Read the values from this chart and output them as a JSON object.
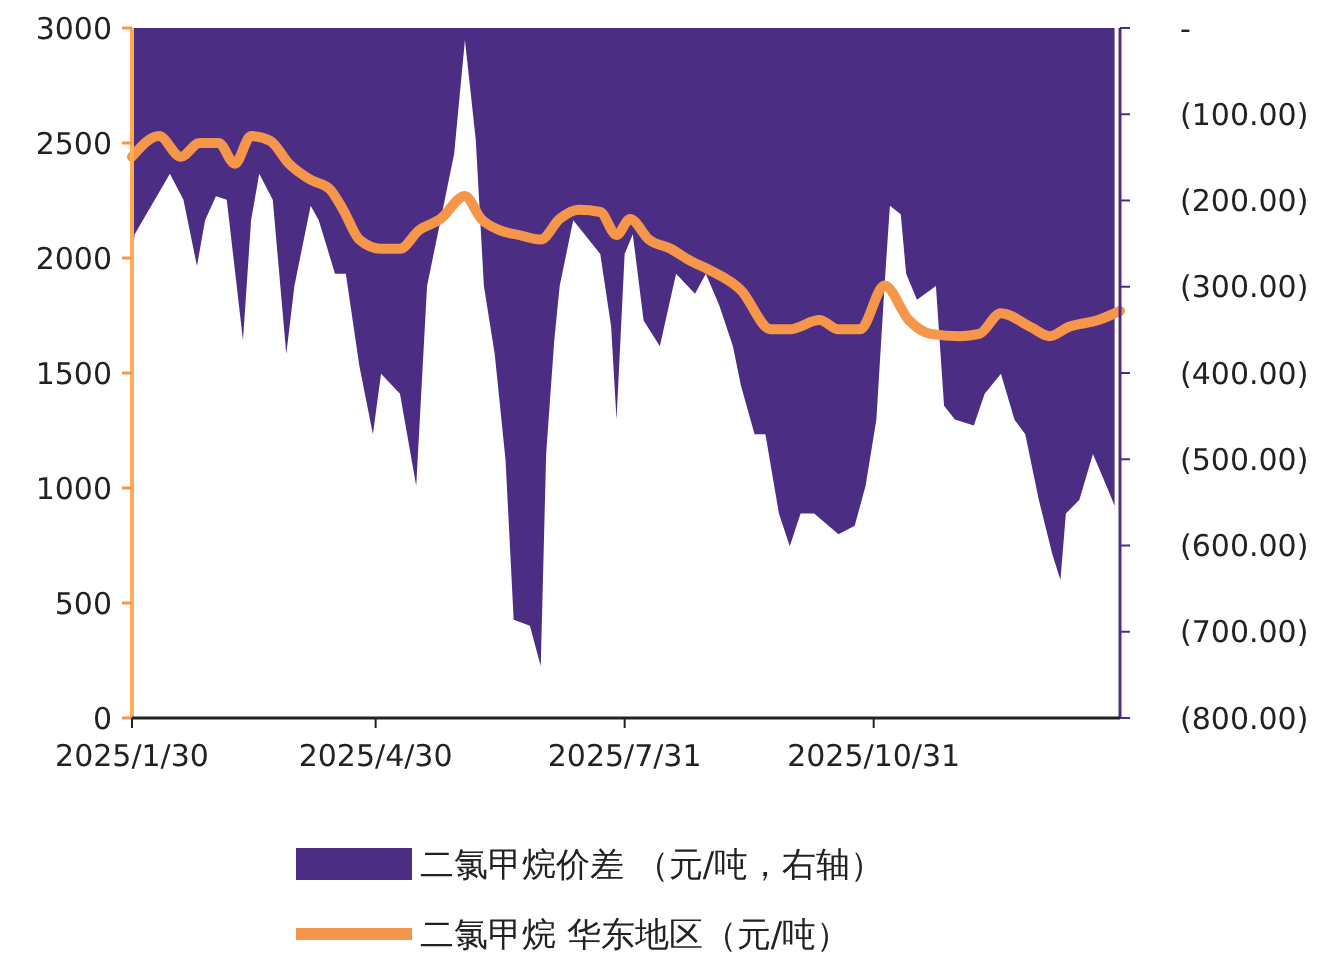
{
  "chart_data": {
    "type": "line",
    "xlim": [
      "2025-01-30",
      "2026-01-30"
    ],
    "xticks": [
      {
        "value": "2025-01-30",
        "label": "2025/1/30"
      },
      {
        "value": "2025-04-30",
        "label": "2025/4/30"
      },
      {
        "value": "2025-07-31",
        "label": "2025/7/31"
      },
      {
        "value": "2025-10-31",
        "label": "2025/10/31"
      }
    ],
    "ylim": [
      0,
      3000
    ],
    "yticks": [
      0,
      500,
      1000,
      1500,
      2000,
      2500,
      3000
    ],
    "y2lim": [
      -800,
      0
    ],
    "y2ticks": [
      {
        "value": 0,
        "label": "-"
      },
      {
        "value": -100,
        "label": "(100.00)"
      },
      {
        "value": -200,
        "label": "(200.00)"
      },
      {
        "value": -300,
        "label": "(300.00)"
      },
      {
        "value": -400,
        "label": "(400.00)"
      },
      {
        "value": -500,
        "label": "(500.00)"
      },
      {
        "value": -600,
        "label": "(600.00)"
      },
      {
        "value": -700,
        "label": "(700.00)"
      },
      {
        "value": -800,
        "label": "(800.00)"
      }
    ],
    "legend": "bottom",
    "series": [
      {
        "name": "二氯甲烷价差 （元/吨，右轴）",
        "type": "area",
        "axis": "y2",
        "color": "#4b2e83",
        "x": [
          "2025-01-30",
          "2025-01-31",
          "2025-02-13",
          "2025-02-18",
          "2025-02-23",
          "2025-02-26",
          "2025-03-02",
          "2025-03-06",
          "2025-03-12",
          "2025-03-15",
          "2025-03-18",
          "2025-03-23",
          "2025-03-28",
          "2025-03-31",
          "2025-04-06",
          "2025-04-09",
          "2025-04-15",
          "2025-04-19",
          "2025-04-24",
          "2025-04-29",
          "2025-05-02",
          "2025-05-09",
          "2025-05-15",
          "2025-05-19",
          "2025-05-24",
          "2025-05-29",
          "2025-06-02",
          "2025-06-06",
          "2025-06-09",
          "2025-06-13",
          "2025-06-17",
          "2025-06-20",
          "2025-06-26",
          "2025-06-30",
          "2025-07-02",
          "2025-07-05",
          "2025-07-07",
          "2025-07-12",
          "2025-07-22",
          "2025-07-26",
          "2025-07-28",
          "2025-07-31",
          "2025-08-03",
          "2025-08-07",
          "2025-08-13",
          "2025-08-19",
          "2025-08-26",
          "2025-08-30",
          "2025-09-04",
          "2025-09-09",
          "2025-09-12",
          "2025-09-17",
          "2025-09-21",
          "2025-09-26",
          "2025-09-30",
          "2025-10-04",
          "2025-10-09",
          "2025-10-18",
          "2025-10-24",
          "2025-10-28",
          "2025-11-01",
          "2025-11-04",
          "2025-11-06",
          "2025-11-10",
          "2025-11-12",
          "2025-11-16",
          "2025-11-23",
          "2025-11-26",
          "2025-11-30",
          "2025-12-07",
          "2025-12-11",
          "2025-12-17",
          "2025-12-22",
          "2025-12-26",
          "2025-12-31",
          "2026-01-05",
          "2026-01-08",
          "2026-01-10",
          "2026-01-15",
          "2026-01-20",
          "2026-01-25",
          "2026-01-28"
        ],
        "values": [
          -269,
          -239,
          -169,
          -199,
          -276,
          -223,
          -195,
          -199,
          -362,
          -223,
          -169,
          -199,
          -378,
          -299,
          -206,
          -223,
          -285,
          -285,
          -392,
          -471,
          -401,
          -424,
          -531,
          -299,
          -223,
          -146,
          -14,
          -130,
          -299,
          -378,
          -501,
          -686,
          -693,
          -740,
          -494,
          -362,
          -299,
          -223,
          -262,
          -346,
          -454,
          -262,
          -239,
          -339,
          -369,
          -285,
          -308,
          -285,
          -322,
          -369,
          -415,
          -471,
          -471,
          -563,
          -601,
          -563,
          -563,
          -587,
          -577,
          -531,
          -454,
          -299,
          -206,
          -216,
          -285,
          -315,
          -299,
          -438,
          -454,
          -461,
          -424,
          -401,
          -454,
          -471,
          -547,
          -610,
          -640,
          -563,
          -547,
          -494,
          -531,
          -554
        ]
      },
      {
        "name": "二氯甲烷 华东地区（元/吨）",
        "color": "#f5964a",
        "x": [
          "2025-01-30",
          "2025-02-09",
          "2025-02-17",
          "2025-02-24",
          "2025-03-03",
          "2025-03-09",
          "2025-03-15",
          "2025-03-22",
          "2025-03-29",
          "2025-04-06",
          "2025-04-13",
          "2025-04-18",
          "2025-04-24",
          "2025-05-02",
          "2025-05-09",
          "2025-05-16",
          "2025-05-24",
          "2025-06-02",
          "2025-06-08",
          "2025-06-15",
          "2025-06-22",
          "2025-06-30",
          "2025-07-07",
          "2025-07-14",
          "2025-07-22",
          "2025-07-28",
          "2025-08-02",
          "2025-08-09",
          "2025-08-17",
          "2025-08-24",
          "2025-08-31",
          "2025-09-12",
          "2025-09-23",
          "2025-09-30",
          "2025-10-11",
          "2025-10-18",
          "2025-10-26",
          "2025-11-04",
          "2025-11-13",
          "2025-11-21",
          "2025-12-02",
          "2025-12-09",
          "2025-12-17",
          "2025-12-28",
          "2026-01-04",
          "2026-01-11",
          "2026-01-22",
          "2026-01-30"
        ],
        "values": [
          2440,
          2530,
          2440,
          2500,
          2500,
          2410,
          2530,
          2510,
          2410,
          2340,
          2300,
          2210,
          2080,
          2040,
          2040,
          2120,
          2170,
          2270,
          2170,
          2120,
          2100,
          2080,
          2170,
          2210,
          2200,
          2100,
          2170,
          2080,
          2040,
          1990,
          1950,
          1860,
          1690,
          1690,
          1730,
          1690,
          1690,
          1880,
          1730,
          1670,
          1660,
          1670,
          1760,
          1700,
          1660,
          1700,
          1730,
          1770
        ]
      }
    ]
  }
}
